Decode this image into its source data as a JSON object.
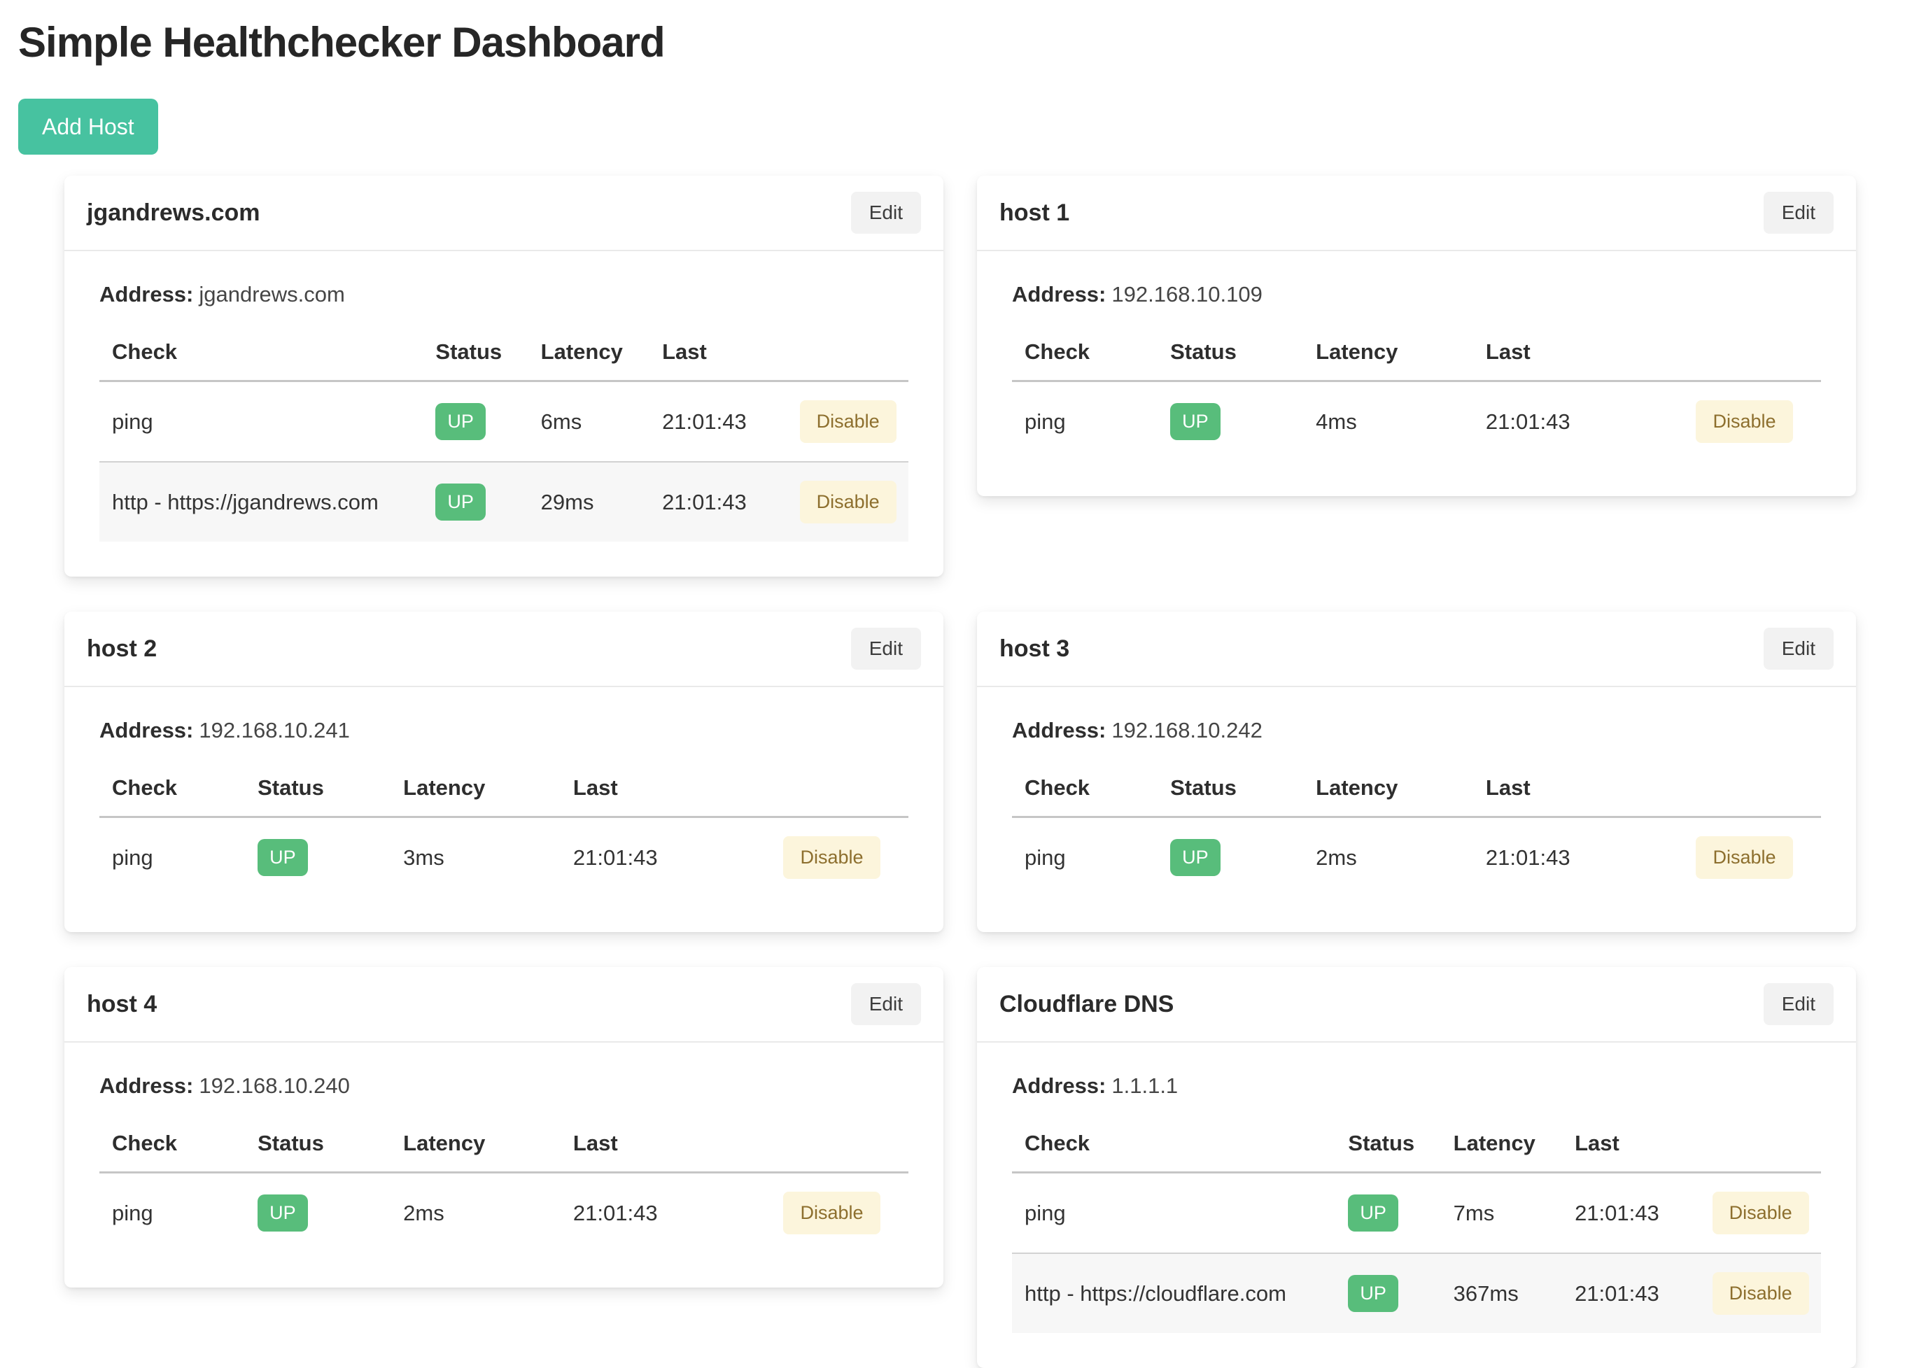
{
  "page": {
    "title": "Simple Healthchecker Dashboard",
    "add_host_label": "Add Host"
  },
  "labels": {
    "address": "Address:",
    "edit": "Edit",
    "disable": "Disable"
  },
  "table_headers": {
    "check": "Check",
    "status": "Status",
    "latency": "Latency",
    "last": "Last"
  },
  "colors": {
    "add_host_bg": "#47c2a0",
    "up_badge_bg": "#58bd7b",
    "disable_bg": "#fcf5dc",
    "disable_text": "#8d6f2e",
    "edit_bg": "#f2f2f2"
  },
  "hosts": [
    {
      "name": "jgandrews.com",
      "address": "jgandrews.com",
      "variant": "wide",
      "checks": [
        {
          "check": "ping",
          "status": "UP",
          "latency": "6ms",
          "last": "21:01:43"
        },
        {
          "check": "http - https://jgandrews.com",
          "status": "UP",
          "latency": "29ms",
          "last": "21:01:43"
        }
      ]
    },
    {
      "name": "host 1",
      "address": "192.168.10.109",
      "variant": "narrow",
      "checks": [
        {
          "check": "ping",
          "status": "UP",
          "latency": "4ms",
          "last": "21:01:43"
        }
      ]
    },
    {
      "name": "host 2",
      "address": "192.168.10.241",
      "variant": "narrow",
      "checks": [
        {
          "check": "ping",
          "status": "UP",
          "latency": "3ms",
          "last": "21:01:43"
        }
      ]
    },
    {
      "name": "host 3",
      "address": "192.168.10.242",
      "variant": "narrow",
      "checks": [
        {
          "check": "ping",
          "status": "UP",
          "latency": "2ms",
          "last": "21:01:43"
        }
      ]
    },
    {
      "name": "host 4",
      "address": "192.168.10.240",
      "variant": "narrow",
      "checks": [
        {
          "check": "ping",
          "status": "UP",
          "latency": "2ms",
          "last": "21:01:43"
        }
      ]
    },
    {
      "name": "Cloudflare DNS",
      "address": "1.1.1.1",
      "variant": "wide",
      "checks": [
        {
          "check": "ping",
          "status": "UP",
          "latency": "7ms",
          "last": "21:01:43"
        },
        {
          "check": "http - https://cloudflare.com",
          "status": "UP",
          "latency": "367ms",
          "last": "21:01:43"
        }
      ]
    }
  ]
}
